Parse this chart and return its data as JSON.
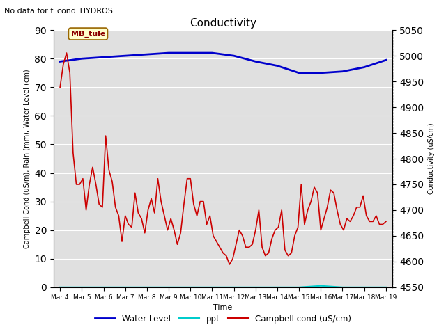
{
  "title": "Conductivity",
  "top_left_text": "No data for f_cond_HYDROS",
  "legend_label": "MB_tule",
  "xlabel": "Time",
  "ylabel_left": "Campbell Cond (uS/m), Rain (mm), Water Level (cm)",
  "ylabel_right": "Conductivity (uS/cm)",
  "ylim_left": [
    0,
    90
  ],
  "ylim_right": [
    4550,
    5050
  ],
  "yticks_left": [
    0,
    10,
    20,
    30,
    40,
    50,
    60,
    70,
    80,
    90
  ],
  "yticks_right": [
    4550,
    4600,
    4650,
    4700,
    4750,
    4800,
    4850,
    4900,
    4950,
    5000,
    5050
  ],
  "xtick_labels": [
    "Mar 4",
    "Mar 5",
    "Mar 6",
    "Mar 7",
    "Mar 8",
    "Mar 9",
    "Mar 10",
    "Mar 11",
    "Mar 12",
    "Mar 13",
    "Mar 14",
    "Mar 15",
    "Mar 16",
    "Mar 17",
    "Mar 18",
    "Mar 19"
  ],
  "plot_bg_color": "#e0e0e0",
  "water_level_color": "#0000cc",
  "ppt_color": "#00cccc",
  "campbell_color": "#cc0000",
  "water_level_y": [
    79,
    80,
    80.5,
    81,
    81.5,
    82,
    82,
    82,
    81,
    79,
    77.5,
    75,
    75,
    75.5,
    77,
    79.5
  ],
  "ppt_y": [
    0,
    0,
    0,
    0,
    0,
    0,
    0,
    0,
    0,
    0,
    0,
    0,
    0.5,
    0,
    0,
    0
  ],
  "campbell_y": [
    70,
    78,
    82,
    75,
    47,
    36,
    36,
    38,
    27,
    36,
    42,
    36,
    29,
    28,
    53,
    41,
    37,
    28,
    25,
    16,
    25,
    22,
    21,
    33,
    26,
    24,
    19,
    27,
    31,
    26,
    38,
    30,
    25,
    20,
    24,
    20,
    15,
    19,
    29,
    38,
    38,
    29,
    25,
    30,
    30,
    22,
    25,
    18,
    16,
    14,
    12,
    11,
    8,
    10,
    15,
    20,
    18,
    14,
    14,
    15,
    20,
    27,
    14,
    11,
    12,
    17,
    20,
    21,
    27,
    13,
    11,
    12,
    18,
    21,
    36,
    22,
    27,
    30,
    35,
    33,
    20,
    24,
    28,
    34,
    33,
    27,
    22,
    20,
    24,
    23,
    25,
    28,
    28,
    32,
    25,
    23,
    23,
    25,
    22,
    22,
    23
  ],
  "figsize": [
    6.4,
    4.8
  ],
  "dpi": 100
}
